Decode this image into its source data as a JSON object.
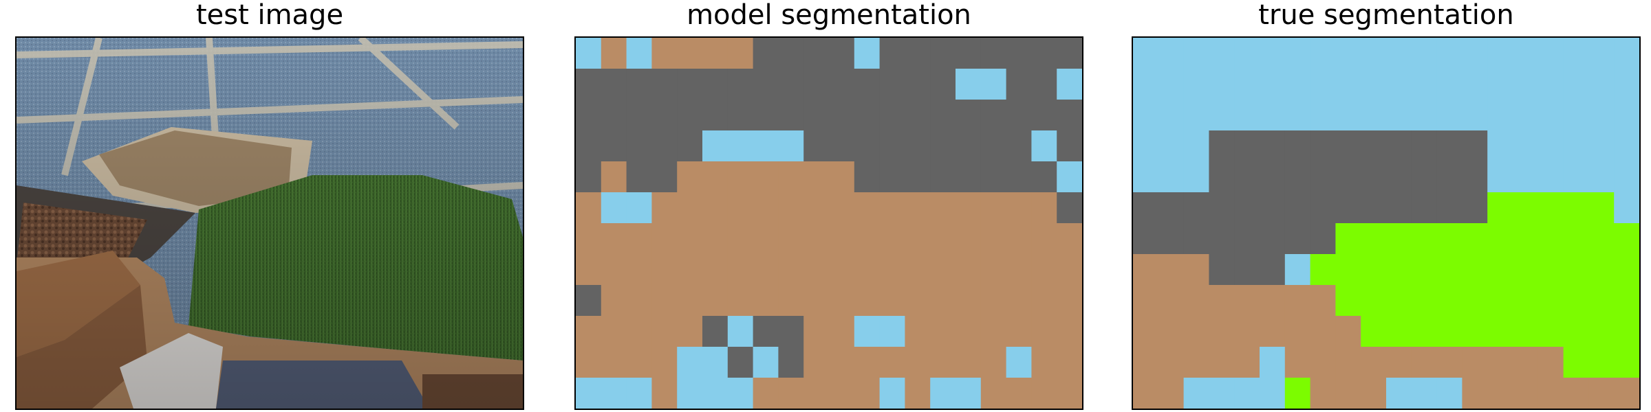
{
  "panels": [
    {
      "title": "test image"
    },
    {
      "title": "model segmentation"
    },
    {
      "title": "true segmentation"
    }
  ],
  "legend_colors": {
    "sky-blue": "#87CEEB",
    "tan": "#BA8C65",
    "gray": "#636363",
    "green": "#7CFC00"
  },
  "model_grid": [
    "BTBTTTTGGGGBGGGGGGGG",
    "GGGGGGGGGGGGGGGBBGGB",
    "GGGGGGGGGGGGGGGGGGGG",
    "GGGGGBBBBGGGGGGGGGBG",
    "GTGGTTTTTTTGGGGGGGGB",
    "TBBTTTTTTTTTTTTTTTTG",
    "TTTTTTTTTTTTTTTTTTTT",
    "TTTTTTTTTTTTTTTTTTTT",
    "GTTTTTTTTTTTTTTTTTTT",
    "TTTTTGBGGTTBBTTTTTTT",
    "TTTTBBGBGTTTTTTTTBTT",
    "BBBTBBBTTTTTBTBBTTTT"
  ],
  "true_grid": [
    "BBBBBBBBBBBBBBBBBBBB",
    "BBBBBBBBBBBBBBBBBBBB",
    "BBBBBBBBBBBBBBBBBBBB",
    "BBBGGGGGGGGGGGBBBBBB",
    "BBBGGGGGGGGGGGBBBBBB",
    "GGGGGGGGGGGGGGVVVVVB",
    "GGGGGGGGVVVVVVVVVVVV",
    "TTTGGGBVVVVVVVVVVVVV",
    "TTTTTTTTVVVVVVVVVVVV",
    "TTTTTTTTTVVVVVVVVVVV",
    "TTTTTBTTTTTTTTTTTVVV",
    "TTBBBBVTTTBBBTTTTTTT"
  ]
}
